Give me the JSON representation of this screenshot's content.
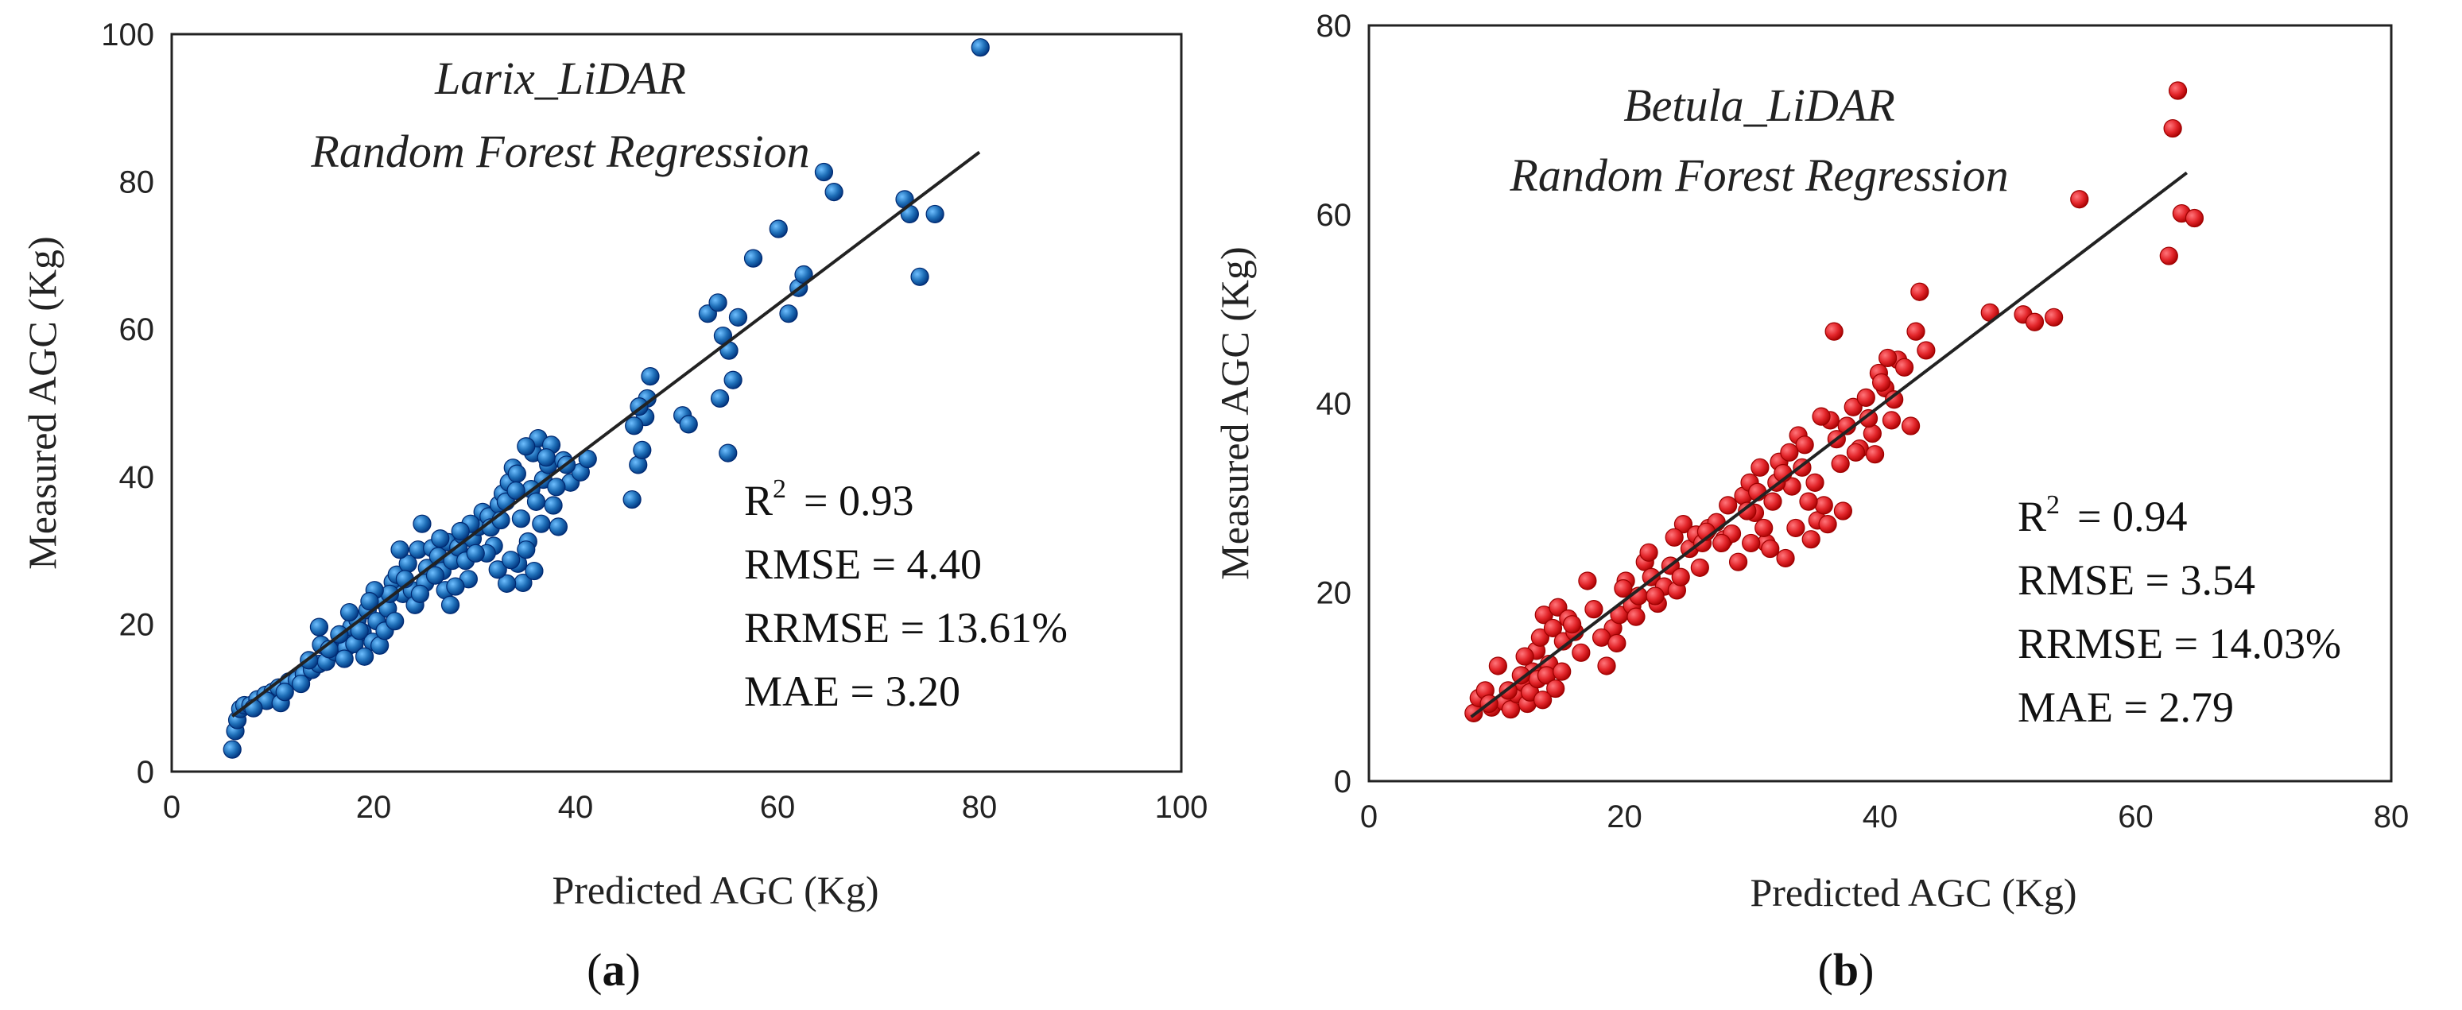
{
  "chart_data": [
    {
      "type": "scatter",
      "id": "a",
      "title_lines": [
        "Larix_LiDAR",
        "Random Forest Regression"
      ],
      "xlabel": "Predicted AGC (Kg)",
      "ylabel": "Measured AGC (Kg)",
      "xlim": [
        0,
        100
      ],
      "ylim": [
        0,
        100
      ],
      "xticks": [
        "0",
        "20",
        "40",
        "60",
        "80",
        "100"
      ],
      "yticks": [
        "0",
        "20",
        "40",
        "60",
        "80",
        "100"
      ],
      "color": "#1f6fb8",
      "fit_line": {
        "x": [
          6,
          80
        ],
        "y": [
          7.5,
          84
        ]
      },
      "stats": [
        "R",
        "= 0.93",
        "RMSE = 4.40",
        "RRMSE = 13.61%",
        "MAE = 3.20"
      ],
      "panel_label": [
        "(",
        "a",
        ")"
      ],
      "points": [
        [
          6,
          3
        ],
        [
          6.3,
          5.5
        ],
        [
          6.5,
          7
        ],
        [
          6.8,
          8.5
        ],
        [
          7.2,
          9
        ],
        [
          7.8,
          9
        ],
        [
          8.5,
          9.8
        ],
        [
          9.3,
          10.4
        ],
        [
          10,
          10.8
        ],
        [
          10.6,
          11.4
        ],
        [
          9.4,
          9.6
        ],
        [
          10.8,
          9.3
        ],
        [
          11.6,
          12.2
        ],
        [
          12.4,
          12.4
        ],
        [
          13.1,
          13.2
        ],
        [
          13.9,
          13.8
        ],
        [
          14.6,
          14.6
        ],
        [
          15.3,
          14.9
        ],
        [
          14.8,
          17.2
        ],
        [
          14.6,
          19.6
        ],
        [
          16.2,
          16.2
        ],
        [
          16.8,
          18.3
        ],
        [
          17.3,
          16.8
        ],
        [
          17.8,
          19.6
        ],
        [
          18.4,
          20.6
        ],
        [
          18.9,
          18.9
        ],
        [
          19.4,
          21.9
        ],
        [
          19.9,
          17.6
        ],
        [
          20.3,
          20.4
        ],
        [
          20.8,
          23.2
        ],
        [
          21.4,
          22.1
        ],
        [
          21.9,
          25.7
        ],
        [
          22.3,
          26.7
        ],
        [
          22.9,
          24.1
        ],
        [
          23.4,
          28.2
        ],
        [
          23.8,
          24.6
        ],
        [
          24.4,
          30.1
        ],
        [
          24.8,
          33.6
        ],
        [
          25.3,
          27.6
        ],
        [
          25.8,
          30.3
        ],
        [
          26.4,
          29.2
        ],
        [
          26.8,
          27.2
        ],
        [
          27.4,
          31.1
        ],
        [
          27.8,
          28.6
        ],
        [
          28.4,
          30.4
        ],
        [
          28.8,
          32.1
        ],
        [
          29.4,
          26.1
        ],
        [
          29.8,
          31.6
        ],
        [
          30.4,
          33.2
        ],
        [
          30.8,
          35.2
        ],
        [
          31.4,
          34.6
        ],
        [
          31.9,
          30.6
        ],
        [
          32.4,
          36.2
        ],
        [
          32.8,
          37.7
        ],
        [
          33.4,
          39.2
        ],
        [
          33.8,
          41.2
        ],
        [
          34.3,
          28.2
        ],
        [
          34.8,
          25.6
        ],
        [
          35.3,
          31.2
        ],
        [
          35.8,
          43.2
        ],
        [
          36.3,
          45.2
        ],
        [
          36.8,
          39.6
        ],
        [
          37.3,
          41.6
        ],
        [
          37.8,
          36.1
        ],
        [
          38.3,
          33.2
        ],
        [
          38.8,
          42.2
        ],
        [
          39.5,
          39.2
        ],
        [
          40.5,
          40.6
        ],
        [
          41.2,
          42.4
        ],
        [
          34.6,
          34.3
        ],
        [
          33.2,
          25.5
        ],
        [
          35.1,
          30.1
        ],
        [
          35.9,
          27.2
        ],
        [
          31.2,
          29.6
        ],
        [
          32.3,
          27.4
        ],
        [
          33.6,
          28.7
        ],
        [
          36.6,
          33.6
        ],
        [
          37.6,
          44.3
        ],
        [
          35.6,
          38.3
        ],
        [
          34.2,
          40.4
        ],
        [
          45.6,
          36.9
        ],
        [
          46.2,
          41.6
        ],
        [
          46.6,
          43.6
        ],
        [
          46.9,
          48.1
        ],
        [
          47.4,
          53.6
        ],
        [
          47.1,
          50.6
        ],
        [
          45.8,
          46.9
        ],
        [
          46.3,
          49.5
        ],
        [
          50.6,
          48.3
        ],
        [
          51.2,
          47.1
        ],
        [
          53.1,
          62.1
        ],
        [
          54.1,
          63.6
        ],
        [
          54.6,
          59.1
        ],
        [
          55.2,
          57.1
        ],
        [
          55.6,
          53.1
        ],
        [
          55.1,
          43.2
        ],
        [
          54.3,
          50.6
        ],
        [
          56.1,
          61.6
        ],
        [
          57.6,
          69.6
        ],
        [
          60.1,
          73.6
        ],
        [
          61.1,
          62.1
        ],
        [
          62.1,
          65.6
        ],
        [
          62.6,
          67.4
        ],
        [
          64.6,
          81.3
        ],
        [
          65.6,
          78.6
        ],
        [
          72.6,
          77.6
        ],
        [
          73.1,
          75.6
        ],
        [
          74.1,
          67.1
        ],
        [
          75.6,
          75.6
        ],
        [
          80.1,
          98.2
        ],
        [
          8.1,
          8.6
        ],
        [
          11.2,
          10.8
        ],
        [
          12.8,
          11.9
        ],
        [
          13.6,
          15.1
        ],
        [
          15.6,
          16.6
        ],
        [
          17.1,
          15.3
        ],
        [
          18.1,
          17.3
        ],
        [
          19.1,
          15.6
        ],
        [
          20.6,
          17.1
        ],
        [
          21.1,
          19.1
        ],
        [
          22.1,
          20.4
        ],
        [
          21.6,
          24.1
        ],
        [
          23.1,
          26.1
        ],
        [
          24.1,
          22.6
        ],
        [
          25.1,
          25.6
        ],
        [
          26.1,
          26.6
        ],
        [
          27.1,
          24.6
        ],
        [
          28.1,
          25.1
        ],
        [
          29.1,
          28.6
        ],
        [
          30.1,
          29.6
        ],
        [
          27.6,
          22.6
        ],
        [
          24.6,
          24.1
        ],
        [
          22.6,
          30.1
        ],
        [
          20.1,
          24.6
        ],
        [
          19.6,
          23.1
        ],
        [
          18.6,
          19.1
        ],
        [
          17.6,
          21.6
        ],
        [
          16.6,
          18.6
        ],
        [
          29.6,
          33.6
        ],
        [
          31.6,
          33.1
        ],
        [
          33.1,
          36.6
        ],
        [
          34.1,
          38.1
        ],
        [
          36.1,
          36.6
        ],
        [
          38.1,
          38.6
        ],
        [
          39.1,
          41.6
        ],
        [
          37.1,
          42.6
        ],
        [
          35.1,
          44.1
        ],
        [
          32.6,
          34.1
        ],
        [
          28.6,
          32.6
        ],
        [
          26.6,
          31.6
        ]
      ]
    },
    {
      "type": "scatter",
      "id": "b",
      "title_lines": [
        "Betula_LiDAR",
        "Random Forest Regression"
      ],
      "xlabel": "Predicted AGC (Kg)",
      "ylabel": "Measured AGC (Kg)",
      "xlim": [
        0,
        80
      ],
      "ylim": [
        0,
        80
      ],
      "xticks": [
        "0",
        "20",
        "40",
        "60",
        "80"
      ],
      "yticks": [
        "0",
        "20",
        "40",
        "60",
        "80"
      ],
      "color": "#e3262b",
      "fit_line": {
        "x": [
          8,
          64
        ],
        "y": [
          6.8,
          64.4
        ]
      },
      "stats": [
        "R",
        "= 0.94",
        "RMSE = 3.54",
        "RRMSE = 14.03%",
        "MAE = 2.79"
      ],
      "panel_label": [
        "(",
        "b",
        ")"
      ],
      "points": [
        [
          8.2,
          7.2
        ],
        [
          8.6,
          8.8
        ],
        [
          9.1,
          9.6
        ],
        [
          9.6,
          7.8
        ],
        [
          10.1,
          12.2
        ],
        [
          10.6,
          8.4
        ],
        [
          11.1,
          7.6
        ],
        [
          11.6,
          9.2
        ],
        [
          12.1,
          10.4
        ],
        [
          12.4,
          8.2
        ],
        [
          12.8,
          11.6
        ],
        [
          13.1,
          13.8
        ],
        [
          13.4,
          15.2
        ],
        [
          13.7,
          17.6
        ],
        [
          14.1,
          12.4
        ],
        [
          14.4,
          16.2
        ],
        [
          14.8,
          18.4
        ],
        [
          15.2,
          14.8
        ],
        [
          15.6,
          17.2
        ],
        [
          16.1,
          15.8
        ],
        [
          16.6,
          13.6
        ],
        [
          17.1,
          21.2
        ],
        [
          12.6,
          9.4
        ],
        [
          13.2,
          10.8
        ],
        [
          13.9,
          11.2
        ],
        [
          12.2,
          13.2
        ],
        [
          14.6,
          9.8
        ],
        [
          15.1,
          11.6
        ],
        [
          13.6,
          8.6
        ],
        [
          11.9,
          11.2
        ],
        [
          18.6,
          12.2
        ],
        [
          19.1,
          16.2
        ],
        [
          19.6,
          17.6
        ],
        [
          20.1,
          21.2
        ],
        [
          20.6,
          18.6
        ],
        [
          21.1,
          19.6
        ],
        [
          21.6,
          23.2
        ],
        [
          22.1,
          21.6
        ],
        [
          22.6,
          18.8
        ],
        [
          23.1,
          20.6
        ],
        [
          23.6,
          22.8
        ],
        [
          24.1,
          20.2
        ],
        [
          24.6,
          27.2
        ],
        [
          25.1,
          24.6
        ],
        [
          25.6,
          26.1
        ],
        [
          26.1,
          25.2
        ],
        [
          26.6,
          26.8
        ],
        [
          27.2,
          27.4
        ],
        [
          27.8,
          25.6
        ],
        [
          28.4,
          26.2
        ],
        [
          28.9,
          23.2
        ],
        [
          29.3,
          30.2
        ],
        [
          29.8,
          31.6
        ],
        [
          30.2,
          28.4
        ],
        [
          30.6,
          33.2
        ],
        [
          31.1,
          25.2
        ],
        [
          31.6,
          29.6
        ],
        [
          32.1,
          33.8
        ],
        [
          32.6,
          23.6
        ],
        [
          33.1,
          31.2
        ],
        [
          33.6,
          36.6
        ],
        [
          34.1,
          35.6
        ],
        [
          34.6,
          25.6
        ],
        [
          35.1,
          27.6
        ],
        [
          35.6,
          29.2
        ],
        [
          36.1,
          38.2
        ],
        [
          36.4,
          47.6
        ],
        [
          36.9,
          33.6
        ],
        [
          37.4,
          37.6
        ],
        [
          37.9,
          39.6
        ],
        [
          38.4,
          35.2
        ],
        [
          38.9,
          40.6
        ],
        [
          39.4,
          36.8
        ],
        [
          39.9,
          43.2
        ],
        [
          40.4,
          41.6
        ],
        [
          40.9,
          38.2
        ],
        [
          41.4,
          44.6
        ],
        [
          41.9,
          43.8
        ],
        [
          42.4,
          37.6
        ],
        [
          42.8,
          47.6
        ],
        [
          43.1,
          51.8
        ],
        [
          43.6,
          45.6
        ],
        [
          39.6,
          34.6
        ],
        [
          37.1,
          28.6
        ],
        [
          35.9,
          27.2
        ],
        [
          34.4,
          29.6
        ],
        [
          32.9,
          34.8
        ],
        [
          31.9,
          31.6
        ],
        [
          30.9,
          26.8
        ],
        [
          29.9,
          25.2
        ],
        [
          48.6,
          49.6
        ],
        [
          51.2,
          49.4
        ],
        [
          52.1,
          48.6
        ],
        [
          53.6,
          49.1
        ],
        [
          55.6,
          61.6
        ],
        [
          62.6,
          55.6
        ],
        [
          62.9,
          69.1
        ],
        [
          63.3,
          73.1
        ],
        [
          63.6,
          60.1
        ],
        [
          64.6,
          59.6
        ],
        [
          9.4,
          8.2
        ],
        [
          10.9,
          9.6
        ],
        [
          17.6,
          18.2
        ],
        [
          18.2,
          15.2
        ],
        [
          19.9,
          20.4
        ],
        [
          21.9,
          24.2
        ],
        [
          23.9,
          25.8
        ],
        [
          26.4,
          26.4
        ],
        [
          28.1,
          29.2
        ],
        [
          30.4,
          30.6
        ],
        [
          32.4,
          32.6
        ],
        [
          33.9,
          33.2
        ],
        [
          35.4,
          38.6
        ],
        [
          36.6,
          36.2
        ],
        [
          38.1,
          34.8
        ],
        [
          39.1,
          38.4
        ],
        [
          40.1,
          42.2
        ],
        [
          41.1,
          40.4
        ],
        [
          40.6,
          44.8
        ],
        [
          34.9,
          31.6
        ],
        [
          33.4,
          26.8
        ],
        [
          31.4,
          24.6
        ],
        [
          29.6,
          28.6
        ],
        [
          27.6,
          25.2
        ],
        [
          25.9,
          22.6
        ],
        [
          24.4,
          21.6
        ],
        [
          22.4,
          19.6
        ],
        [
          20.9,
          17.4
        ],
        [
          19.4,
          14.6
        ],
        [
          15.9,
          16.6
        ]
      ]
    }
  ]
}
